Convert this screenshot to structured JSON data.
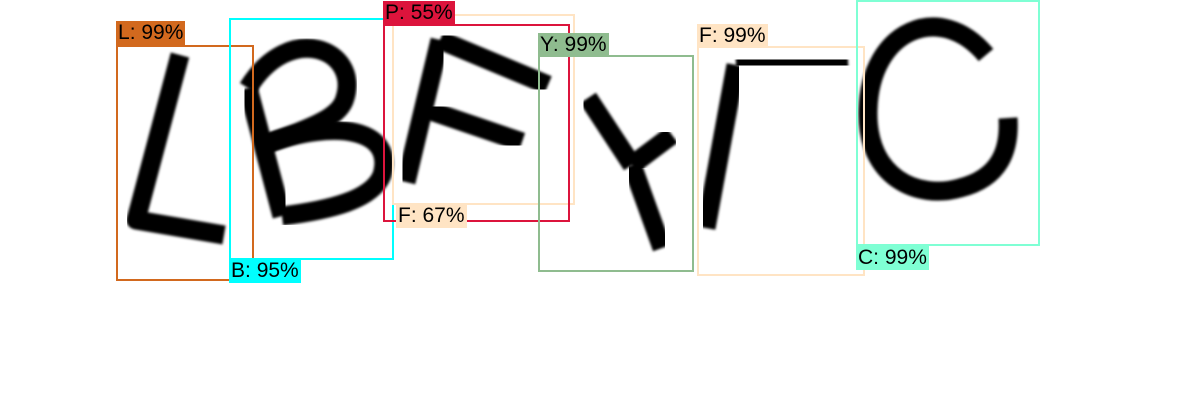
{
  "characters": [
    "L",
    "B",
    "F",
    "Y",
    "F",
    "C"
  ],
  "detections": [
    {
      "label": "L",
      "score_text": "99%",
      "color": "#d2691e"
    },
    {
      "label": "B",
      "score_text": "95%",
      "color": "#00ffff"
    },
    {
      "label": "F",
      "score_text": "67%",
      "color": "#ffe4c4"
    },
    {
      "label": "P",
      "score_text": "55%",
      "color": "#dc143c"
    },
    {
      "label": "Y",
      "score_text": "99%",
      "color": "#8fbc8f"
    },
    {
      "label": "F",
      "score_text": "99%",
      "color": "#ffe4c4"
    },
    {
      "label": "C",
      "score_text": "99%",
      "color": "#7fffd4"
    }
  ]
}
